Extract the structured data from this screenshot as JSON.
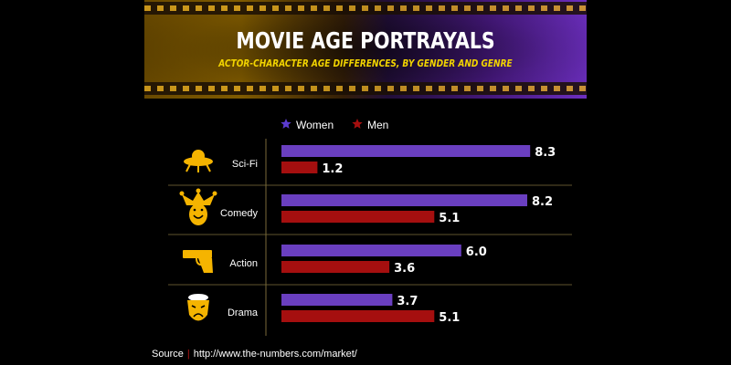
{
  "header": {
    "title": "MOVIE AGE PORTRAYALS",
    "subtitle": "ACTOR-CHARACTER AGE DIFFERENCES, BY GENDER AND GENRE"
  },
  "source": {
    "label": "Source",
    "separator": "|",
    "url": "http://www.the-numbers.com/market/"
  },
  "colors": {
    "women": "#6a3fc0",
    "men": "#a50f0f",
    "icon": "#f5b400",
    "legend_star_women": "#5b3bd0",
    "legend_star_men": "#a50f0f"
  },
  "chart_data": {
    "type": "bar",
    "orientation": "horizontal",
    "categories": [
      "Sci-Fi",
      "Comedy",
      "Action",
      "Drama"
    ],
    "category_icons": [
      "ufo-icon",
      "jester-icon",
      "pistol-icon",
      "theater-mask-icon"
    ],
    "series": [
      {
        "name": "Women",
        "values": [
          8.3,
          8.2,
          6.0,
          3.7
        ]
      },
      {
        "name": "Men",
        "values": [
          1.2,
          5.1,
          3.6,
          5.1
        ]
      }
    ],
    "value_labels": {
      "Women": [
        "8.3",
        "8.2",
        "6.0",
        "3.7"
      ],
      "Men": [
        "1.2",
        "5.1",
        "3.6",
        "5.1"
      ]
    },
    "legend_position": "top",
    "grid": false
  }
}
